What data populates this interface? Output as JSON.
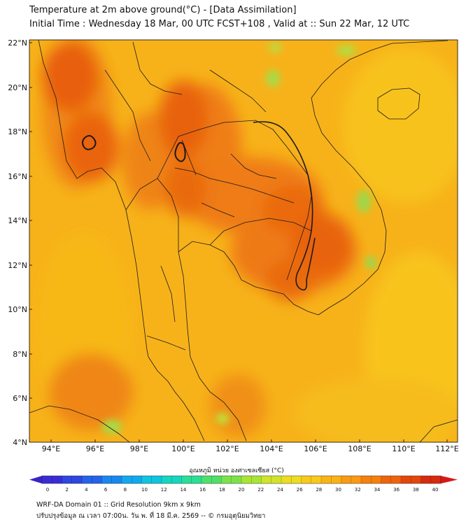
{
  "title_line1": "Temperature at 2m above ground(°C) - [Data Assimilation]",
  "title_line2": "Initial Time : Wednesday 18 Mar, 00 UTC FCST+108 , Valid at :: Sun 22 Mar, 12 UTC",
  "lat_labels": [
    "22°N",
    "20°N",
    "18°N",
    "16°N",
    "14°N",
    "12°N",
    "10°N",
    "8°N",
    "6°N",
    "4°N"
  ],
  "lon_labels": [
    "94°E",
    "96°E",
    "98°E",
    "100°E",
    "102°E",
    "104°E",
    "106°E",
    "108°E",
    "110°E",
    "112°E"
  ],
  "colorbar": {
    "title": "อุณหภูมิ หน่วย องศาเซลเซียส (°C)",
    "ticks": [
      "0",
      "2",
      "4",
      "6",
      "8",
      "10",
      "12",
      "14",
      "16",
      "18",
      "20",
      "22",
      "24",
      "26",
      "28",
      "30",
      "32",
      "34",
      "36",
      "38",
      "40"
    ],
    "colors": [
      "#3b2bd6",
      "#2f46e0",
      "#2463ea",
      "#1a86f0",
      "#12a8ee",
      "#0fc4e0",
      "#16d6c0",
      "#2ade96",
      "#4fe06a",
      "#7de24a",
      "#a8e436",
      "#cfe42a",
      "#ecdc22",
      "#f8c81c",
      "#fbb216",
      "#f99a12",
      "#f5800e",
      "#ee640c",
      "#e4460c",
      "#d82a0e"
    ]
  },
  "footer_line1": "WRF-DA Domain 01 :: Grid Resolution 9km x 9km",
  "footer_line2": "ปรับปรุงข้อมูล ณ เวลา 07:00น. วัน พ. ที่ 18 มี.ค. 2569 -- © กรมอุตุนิยมวิทยา"
}
